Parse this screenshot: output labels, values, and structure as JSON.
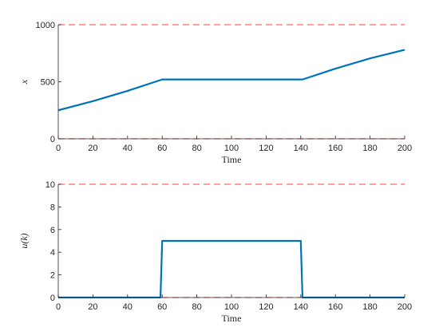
{
  "chart_data": [
    {
      "type": "line",
      "title": "",
      "xlabel": "Time",
      "ylabel": "x",
      "xlim": [
        0,
        200
      ],
      "ylim": [
        0,
        1000
      ],
      "xticks": [
        0,
        20,
        40,
        60,
        80,
        100,
        120,
        140,
        160,
        180,
        200
      ],
      "yticks": [
        0,
        500,
        1000
      ],
      "grid": false,
      "series": [
        {
          "color": "#0072bd",
          "x": [
            0,
            20,
            40,
            59,
            60,
            80,
            100,
            120,
            141,
            160,
            180,
            200
          ],
          "y": [
            250,
            330,
            420,
            515,
            520,
            520,
            520,
            520,
            520,
            615,
            705,
            780
          ]
        }
      ],
      "bounds": [
        {
          "y": 1000,
          "color": "#ff6666",
          "style": "dashed"
        },
        {
          "y": 0,
          "color": "#ff6666",
          "style": "dashed"
        }
      ]
    },
    {
      "type": "line",
      "title": "",
      "xlabel": "Time",
      "ylabel": "u(k)",
      "xlim": [
        0,
        200
      ],
      "ylim": [
        0,
        10
      ],
      "xticks": [
        0,
        20,
        40,
        60,
        80,
        100,
        120,
        140,
        160,
        180,
        200
      ],
      "yticks": [
        0,
        2,
        4,
        6,
        8,
        10
      ],
      "grid": false,
      "series": [
        {
          "color": "#0072bd",
          "x": [
            0,
            59,
            60,
            140,
            141,
            200
          ],
          "y": [
            0,
            0,
            5,
            5,
            0,
            0
          ]
        }
      ],
      "bounds": [
        {
          "y": 10,
          "color": "#ff6666",
          "style": "dashed"
        },
        {
          "y": 0,
          "color": "#ff6666",
          "style": "dashed"
        }
      ]
    }
  ]
}
